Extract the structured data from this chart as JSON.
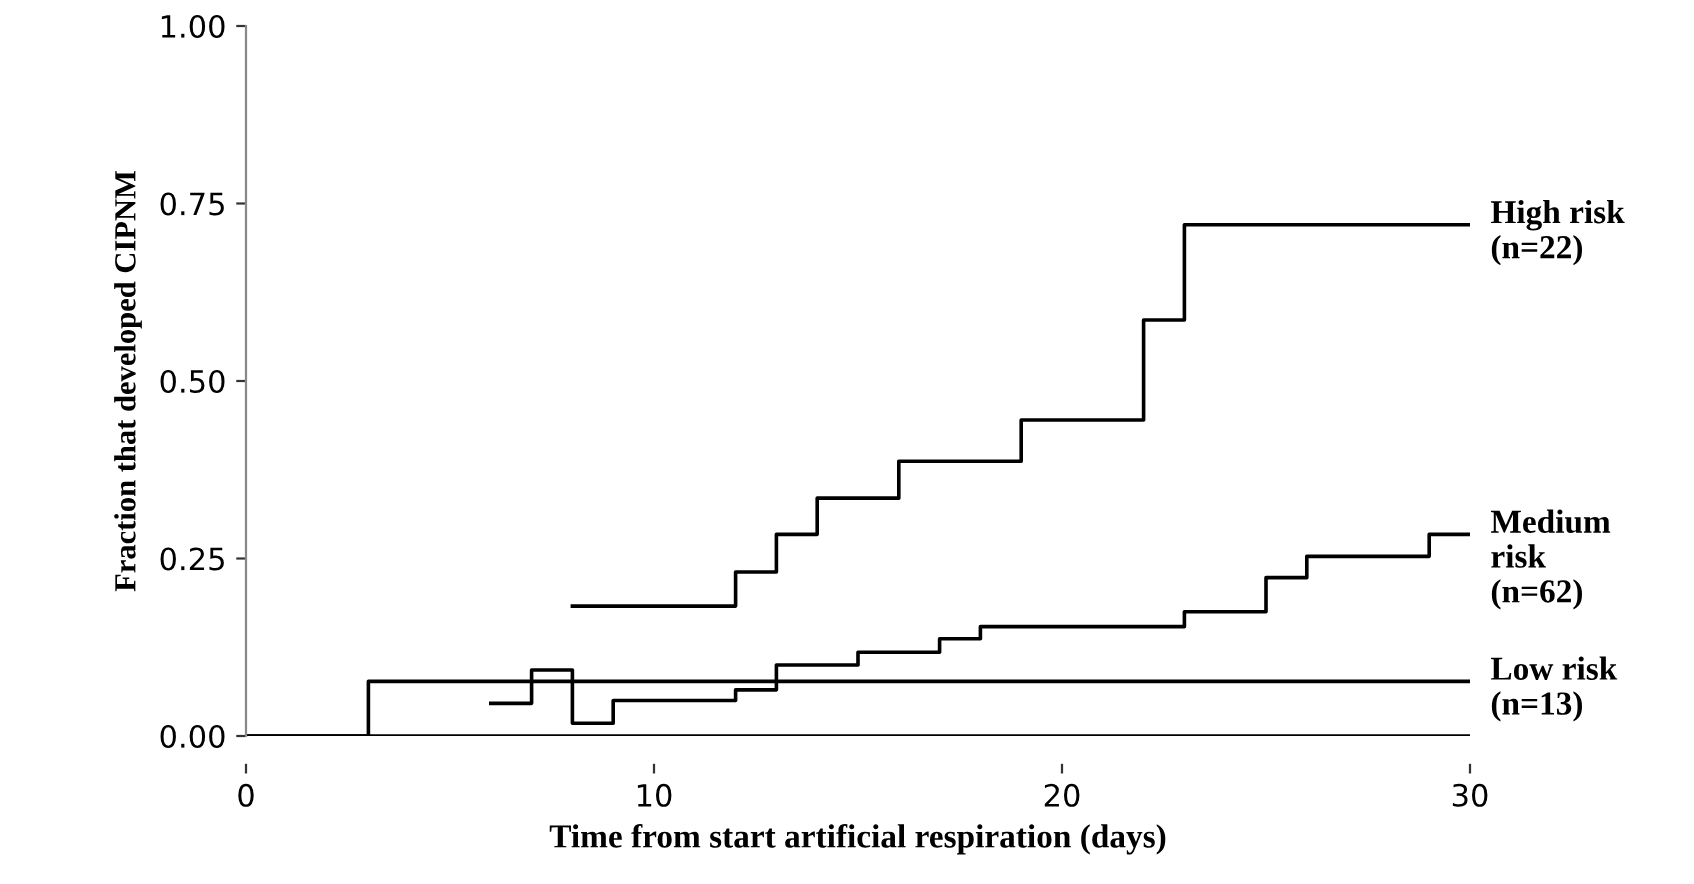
{
  "chart_data": {
    "type": "step",
    "xlabel": "Time from start artificial respiration (days)",
    "ylabel": "Fraction that developed CIPNM",
    "xlim": [
      0,
      30
    ],
    "xticks": [
      0,
      10,
      20,
      30
    ],
    "ylim": [
      0,
      1
    ],
    "yticks": [
      {
        "value": 0,
        "label": "0.00"
      },
      {
        "value": 0.25,
        "label": "0.25"
      },
      {
        "value": 0.5,
        "label": "0.50"
      },
      {
        "value": 0.75,
        "label": "0.75"
      },
      {
        "value": 1,
        "label": "1.00"
      }
    ],
    "grid": false,
    "legend": false,
    "series": [
      {
        "name": "High risk\n(n=22)",
        "color": "#000000",
        "x": [
          8,
          12,
          13,
          14,
          16,
          19,
          22,
          23,
          30
        ],
        "values": [
          0.183,
          0.231,
          0.284,
          0.335,
          0.387,
          0.445,
          0.586,
          0.72,
          0.72
        ]
      },
      {
        "name": "Medium\nrisk\n(n=62)",
        "color": "#000000",
        "x": [
          6,
          7,
          8,
          9,
          12,
          13,
          15,
          17,
          18,
          23,
          25,
          26,
          29,
          30
        ],
        "values": [
          0.046,
          0.093,
          0.018,
          0.05,
          0.065,
          0.1,
          0.118,
          0.137,
          0.154,
          0.175,
          0.223,
          0.253,
          0.284,
          0.284
        ]
      },
      {
        "name": "Low risk\n(n=13)",
        "color": "#000000",
        "x": [
          0,
          3,
          30
        ],
        "values": [
          0,
          0.077,
          0.077
        ]
      },
      {
        "color": "#000000",
        "x": [
          0,
          30
        ],
        "values": [
          0,
          0
        ]
      }
    ]
  }
}
